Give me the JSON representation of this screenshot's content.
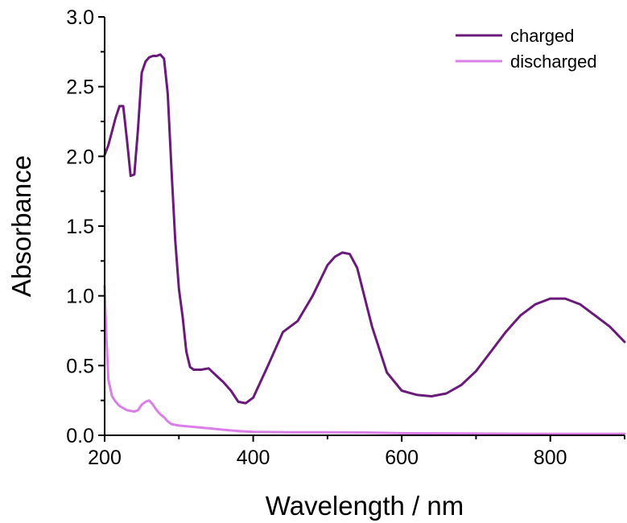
{
  "chart_data": {
    "type": "line",
    "xlabel": "Wavelength / nm",
    "ylabel": "Absorbance",
    "xlim": [
      200,
      900
    ],
    "ylim": [
      0.0,
      3.0
    ],
    "xticks": [
      200,
      400,
      600,
      800
    ],
    "yticks": [
      0.0,
      0.5,
      1.0,
      1.5,
      2.0,
      2.5,
      3.0
    ],
    "xtick_labels": [
      "200",
      "400",
      "600",
      "800"
    ],
    "ytick_labels": [
      "0.0",
      "0.5",
      "1.0",
      "1.5",
      "2.0",
      "2.5",
      "3.0"
    ],
    "grid": false,
    "legend_position": "top-right",
    "series": [
      {
        "name": "charged",
        "color": "#6a1b7a",
        "x": [
          200,
          205,
          210,
          215,
          220,
          225,
          230,
          235,
          240,
          245,
          250,
          255,
          260,
          265,
          270,
          275,
          280,
          285,
          290,
          295,
          300,
          305,
          310,
          315,
          320,
          330,
          340,
          350,
          360,
          370,
          380,
          390,
          400,
          420,
          440,
          460,
          480,
          500,
          510,
          520,
          530,
          540,
          560,
          580,
          600,
          620,
          640,
          660,
          680,
          700,
          720,
          740,
          760,
          780,
          800,
          820,
          840,
          860,
          880,
          900
        ],
        "y": [
          2.01,
          2.08,
          2.18,
          2.28,
          2.36,
          2.36,
          2.12,
          1.86,
          1.87,
          2.2,
          2.6,
          2.68,
          2.71,
          2.72,
          2.72,
          2.73,
          2.7,
          2.45,
          1.9,
          1.4,
          1.05,
          0.85,
          0.6,
          0.49,
          0.47,
          0.47,
          0.48,
          0.43,
          0.38,
          0.32,
          0.24,
          0.23,
          0.27,
          0.5,
          0.74,
          0.82,
          1.0,
          1.22,
          1.28,
          1.31,
          1.3,
          1.2,
          0.78,
          0.45,
          0.32,
          0.29,
          0.28,
          0.3,
          0.36,
          0.46,
          0.6,
          0.74,
          0.86,
          0.94,
          0.98,
          0.98,
          0.94,
          0.86,
          0.78,
          0.67
        ]
      },
      {
        "name": "discharged",
        "color": "#da7ee8",
        "x": [
          200,
          202,
          205,
          210,
          215,
          220,
          230,
          240,
          245,
          250,
          255,
          260,
          265,
          270,
          275,
          280,
          285,
          290,
          300,
          320,
          340,
          360,
          380,
          400,
          450,
          500,
          550,
          600,
          700,
          800,
          900
        ],
        "y": [
          1.07,
          0.75,
          0.4,
          0.28,
          0.24,
          0.21,
          0.18,
          0.17,
          0.18,
          0.22,
          0.24,
          0.25,
          0.22,
          0.18,
          0.15,
          0.13,
          0.1,
          0.08,
          0.07,
          0.06,
          0.05,
          0.04,
          0.03,
          0.025,
          0.022,
          0.022,
          0.02,
          0.015,
          0.012,
          0.01,
          0.01
        ]
      }
    ]
  }
}
